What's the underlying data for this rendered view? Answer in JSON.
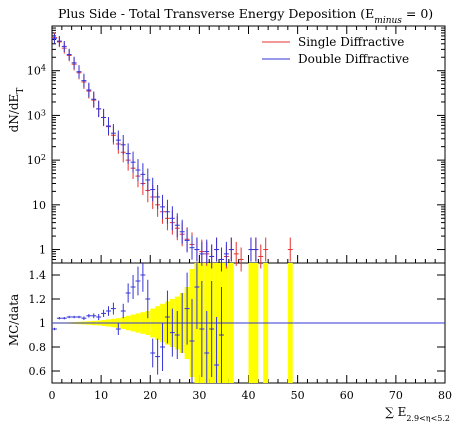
{
  "chart_data": [
    {
      "type": "line",
      "panel": "main",
      "title": "Plus Side - Total Transverse Energy Deposition (E",
      "title_sub": "minus",
      "title_suffix": " = 0)",
      "ylabel": "dN/dE",
      "ylabel_sub": "T",
      "xlim": [
        0,
        80
      ],
      "ylim": [
        0.5,
        100000
      ],
      "yscale": "log",
      "grid": false,
      "legend_position": "top-right",
      "y_tick_labels": [
        "1",
        "10",
        "10^2",
        "10^3",
        "10^4"
      ],
      "series": [
        {
          "name": "Single Diffractive",
          "color": "#e8312f",
          "x": [
            0.5,
            1.5,
            2.5,
            3.5,
            4.5,
            5.5,
            6.5,
            7.5,
            8.5,
            9.5,
            10.5,
            11.5,
            12.5,
            13.5,
            14.5,
            15.5,
            16.5,
            17.5,
            18.5,
            19.5,
            20.5,
            21.5,
            22.5,
            23.5,
            24.5,
            25.5,
            26.5,
            27.5,
            28.5,
            29.5,
            30.5,
            31.5,
            32.5,
            33.5,
            34.5,
            35.5,
            36.5,
            37.5,
            38.5,
            40.5,
            41.5,
            42.5,
            43.5,
            48.5
          ],
          "y": [
            55000,
            44000,
            32000,
            22000,
            14000,
            9000,
            5600,
            3500,
            2200,
            1400,
            900,
            560,
            360,
            230,
            150,
            100,
            66,
            44,
            30,
            21,
            15,
            10,
            7,
            5,
            4,
            3,
            2.2,
            1.7,
            1.3,
            1,
            0.9,
            0.8,
            0.7,
            1,
            0.6,
            0.7,
            1,
            0.8,
            0.6,
            1,
            1,
            0.7,
            1,
            1
          ]
        },
        {
          "name": "Double Diffractive",
          "color": "#3434d8",
          "x": [
            0.5,
            1.5,
            2.5,
            3.5,
            4.5,
            5.5,
            6.5,
            7.5,
            8.5,
            9.5,
            10.5,
            11.5,
            12.5,
            13.5,
            14.5,
            15.5,
            16.5,
            17.5,
            18.5,
            19.5,
            20.5,
            21.5,
            22.5,
            23.5,
            24.5,
            25.5,
            26.5,
            27.5,
            28.5,
            29.5,
            30.5,
            31.5,
            32.5,
            33.5,
            34.5,
            35.5,
            36.5,
            40.5,
            41.5
          ],
          "y": [
            52000,
            46000,
            35000,
            23000,
            15000,
            9500,
            6000,
            3700,
            2300,
            1400,
            900,
            580,
            400,
            280,
            220,
            140,
            90,
            60,
            48,
            36,
            22,
            15,
            9,
            7,
            5,
            3.5,
            2.5,
            1.6,
            1.1,
            1,
            0.8,
            0.9,
            0.7,
            1,
            0.6,
            0.8,
            1,
            1,
            1
          ]
        }
      ]
    },
    {
      "type": "scatter",
      "panel": "ratio",
      "xlabel": "∑ E",
      "xlabel_sub": "2.9<η<5.2",
      "ylabel": "MC/data",
      "xlim": [
        0,
        80
      ],
      "ylim": [
        0.5,
        1.5
      ],
      "x_tick_labels": [
        "0",
        "10",
        "20",
        "30",
        "40",
        "50",
        "60",
        "70",
        "80"
      ],
      "y_tick_labels": [
        "0.6",
        "0.8",
        "1",
        "1.2",
        "1.4"
      ],
      "reference_line": 1,
      "band_color": "#ffff00",
      "band": {
        "x": [
          0.5,
          1.5,
          2.5,
          3.5,
          4.5,
          5.5,
          6.5,
          7.5,
          8.5,
          9.5,
          10.5,
          11.5,
          12.5,
          13.5,
          14.5,
          15.5,
          16.5,
          17.5,
          18.5,
          19.5,
          20.5,
          21.5,
          22.5,
          23.5,
          24.5,
          25.5,
          26.5,
          27.5,
          28.5,
          29.5,
          30.5,
          31.5,
          32.5,
          33.5,
          34.5,
          35.5,
          36.5,
          40.5,
          41.5,
          43.5,
          48.5
        ],
        "half_width": [
          0.005,
          0.005,
          0.005,
          0.006,
          0.008,
          0.01,
          0.012,
          0.015,
          0.018,
          0.02,
          0.025,
          0.03,
          0.035,
          0.04,
          0.05,
          0.06,
          0.07,
          0.08,
          0.09,
          0.1,
          0.12,
          0.14,
          0.16,
          0.18,
          0.2,
          0.22,
          0.25,
          0.3,
          0.45,
          0.5,
          0.5,
          0.5,
          0.5,
          0.5,
          0.5,
          0.5,
          0.5,
          0.5,
          0.5,
          0.5,
          0.5
        ]
      },
      "series": [
        {
          "name": "Single Diffractive",
          "color": "#e8312f",
          "x": [
            0.5,
            1.5,
            2.5,
            3.5,
            4.5,
            5.5,
            6.5,
            7.5,
            8.5,
            9.5,
            10.5,
            11.5,
            12.5,
            13.5,
            14.5,
            15.5,
            16.5,
            17.5,
            18.5,
            19.5,
            20.5,
            21.5,
            22.5,
            23.5,
            24.5,
            25.5,
            26.5,
            27.5,
            28.5,
            29.5,
            30.5,
            31.5,
            32.5,
            33.5,
            34.5,
            35.5,
            36.5,
            40.5,
            41.5,
            43.5,
            48.5
          ],
          "y": [
            1,
            1,
            1,
            1,
            1,
            1,
            1,
            1,
            1,
            1,
            1,
            1,
            1,
            1,
            1,
            1,
            1,
            1,
            1,
            1,
            1,
            1,
            1,
            1,
            1,
            1,
            1,
            1,
            1,
            1,
            1,
            1,
            1,
            1,
            1,
            1,
            1,
            1,
            1,
            1,
            1
          ]
        },
        {
          "name": "Double Diffractive",
          "color": "#3434d8",
          "x": [
            0.5,
            1.5,
            2.5,
            3.5,
            4.5,
            5.5,
            6.5,
            7.5,
            8.5,
            9.5,
            10.5,
            11.5,
            12.5,
            13.5,
            14.5,
            15.5,
            16.5,
            17.5,
            18.5,
            19.5,
            20.5,
            21.5,
            22.5,
            23.5,
            24.5,
            25.5,
            26.5,
            27.5,
            28.5,
            29.5,
            30.5,
            31.5,
            32.5,
            33.5,
            34.5
          ],
          "y": [
            0.95,
            1.04,
            1.04,
            1.05,
            1.05,
            1.05,
            1.04,
            1.06,
            1.06,
            1.05,
            1.08,
            1.1,
            1.12,
            0.95,
            1.1,
            1.25,
            1.3,
            1.35,
            1.4,
            1.2,
            0.75,
            0.72,
            0.8,
            1.05,
            0.92,
            0.9,
            1.0,
            1.12,
            0.85,
            1.3,
            0.95,
            0.75,
            0.95,
            0.65,
            0.9
          ],
          "err": [
            0.01,
            0.01,
            0.01,
            0.01,
            0.01,
            0.01,
            0.015,
            0.015,
            0.02,
            0.025,
            0.03,
            0.04,
            0.05,
            0.05,
            0.06,
            0.08,
            0.1,
            0.12,
            0.14,
            0.16,
            0.12,
            0.15,
            0.2,
            0.22,
            0.2,
            0.2,
            0.25,
            0.3,
            0.35,
            0.35,
            0.4,
            0.35,
            0.4,
            0.4,
            0.4
          ]
        }
      ]
    }
  ],
  "legend": [
    {
      "label": "Single Diffractive",
      "color": "#e8312f"
    },
    {
      "label": "Double Diffractive",
      "color": "#3434d8"
    }
  ]
}
